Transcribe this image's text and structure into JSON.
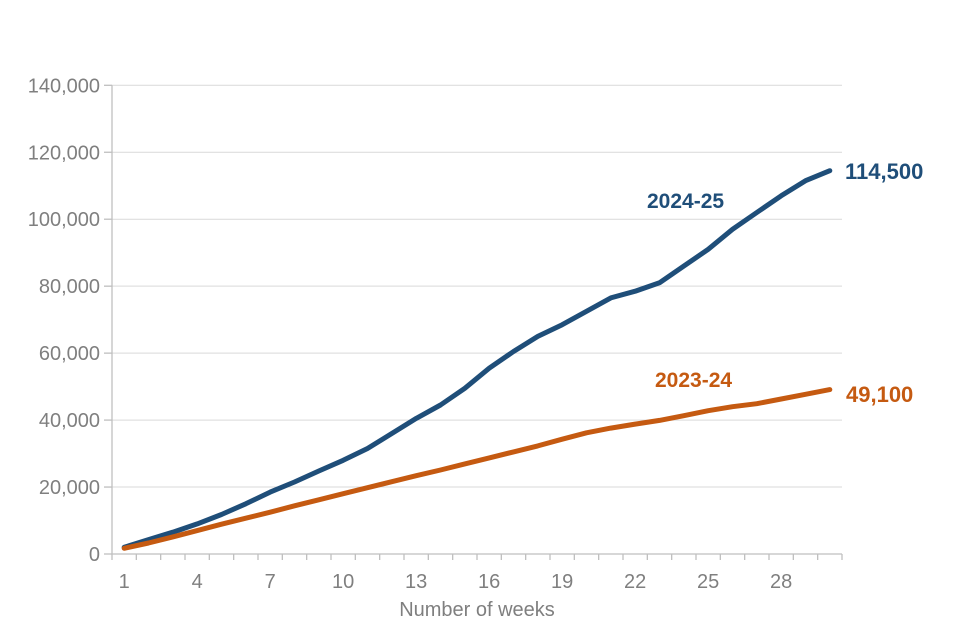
{
  "chart": {
    "title": "",
    "x_axis_title": "Number of weeks"
  },
  "colors": {
    "series_2024_25": "#1F4E79",
    "series_2023_24": "#C55A11",
    "axis_text": "#7F7F7F",
    "gridline": "#D9D9D9",
    "axis_line": "#BFBFBF",
    "background": "#FFFFFF"
  },
  "chart_data": {
    "type": "line",
    "title": "",
    "xlabel": "Number of weeks",
    "ylabel": "",
    "x": [
      1,
      2,
      3,
      4,
      5,
      6,
      7,
      8,
      9,
      10,
      11,
      12,
      13,
      14,
      15,
      16,
      17,
      18,
      19,
      20,
      21,
      22,
      23,
      24,
      25,
      26,
      27,
      28,
      29,
      30
    ],
    "series": [
      {
        "name": "2024-25",
        "color": "#1F4E79",
        "end_label": "114,500",
        "end_value": 114500,
        "values": [
          2000,
          4300,
          6500,
          9000,
          11800,
          15000,
          18500,
          21500,
          24800,
          28000,
          31500,
          36000,
          40500,
          44500,
          49500,
          55500,
          60500,
          65000,
          68500,
          72500,
          76500,
          78500,
          81000,
          86000,
          91000,
          97000,
          102000,
          107000,
          111500,
          114500
        ]
      },
      {
        "name": "2023-24",
        "color": "#C55A11",
        "end_label": "49,100",
        "end_value": 49100,
        "values": [
          1700,
          3300,
          5100,
          7000,
          8900,
          10700,
          12500,
          14400,
          16200,
          18000,
          19800,
          21600,
          23400,
          25100,
          26900,
          28700,
          30500,
          32300,
          34300,
          36200,
          37600,
          38800,
          39900,
          41300,
          42800,
          44000,
          44900,
          46300,
          47700,
          49100
        ]
      }
    ],
    "ylim": [
      0,
      140000
    ],
    "yticks": [
      0,
      20000,
      40000,
      60000,
      80000,
      100000,
      120000,
      140000
    ],
    "ytick_labels": [
      "0",
      "20,000",
      "40,000",
      "60,000",
      "80,000",
      "100,000",
      "120,000",
      "140,000"
    ],
    "xticks_labeled": [
      1,
      4,
      7,
      10,
      13,
      16,
      19,
      22,
      25,
      28
    ],
    "grid": "horizontal",
    "legend": "inline-series-labels"
  }
}
